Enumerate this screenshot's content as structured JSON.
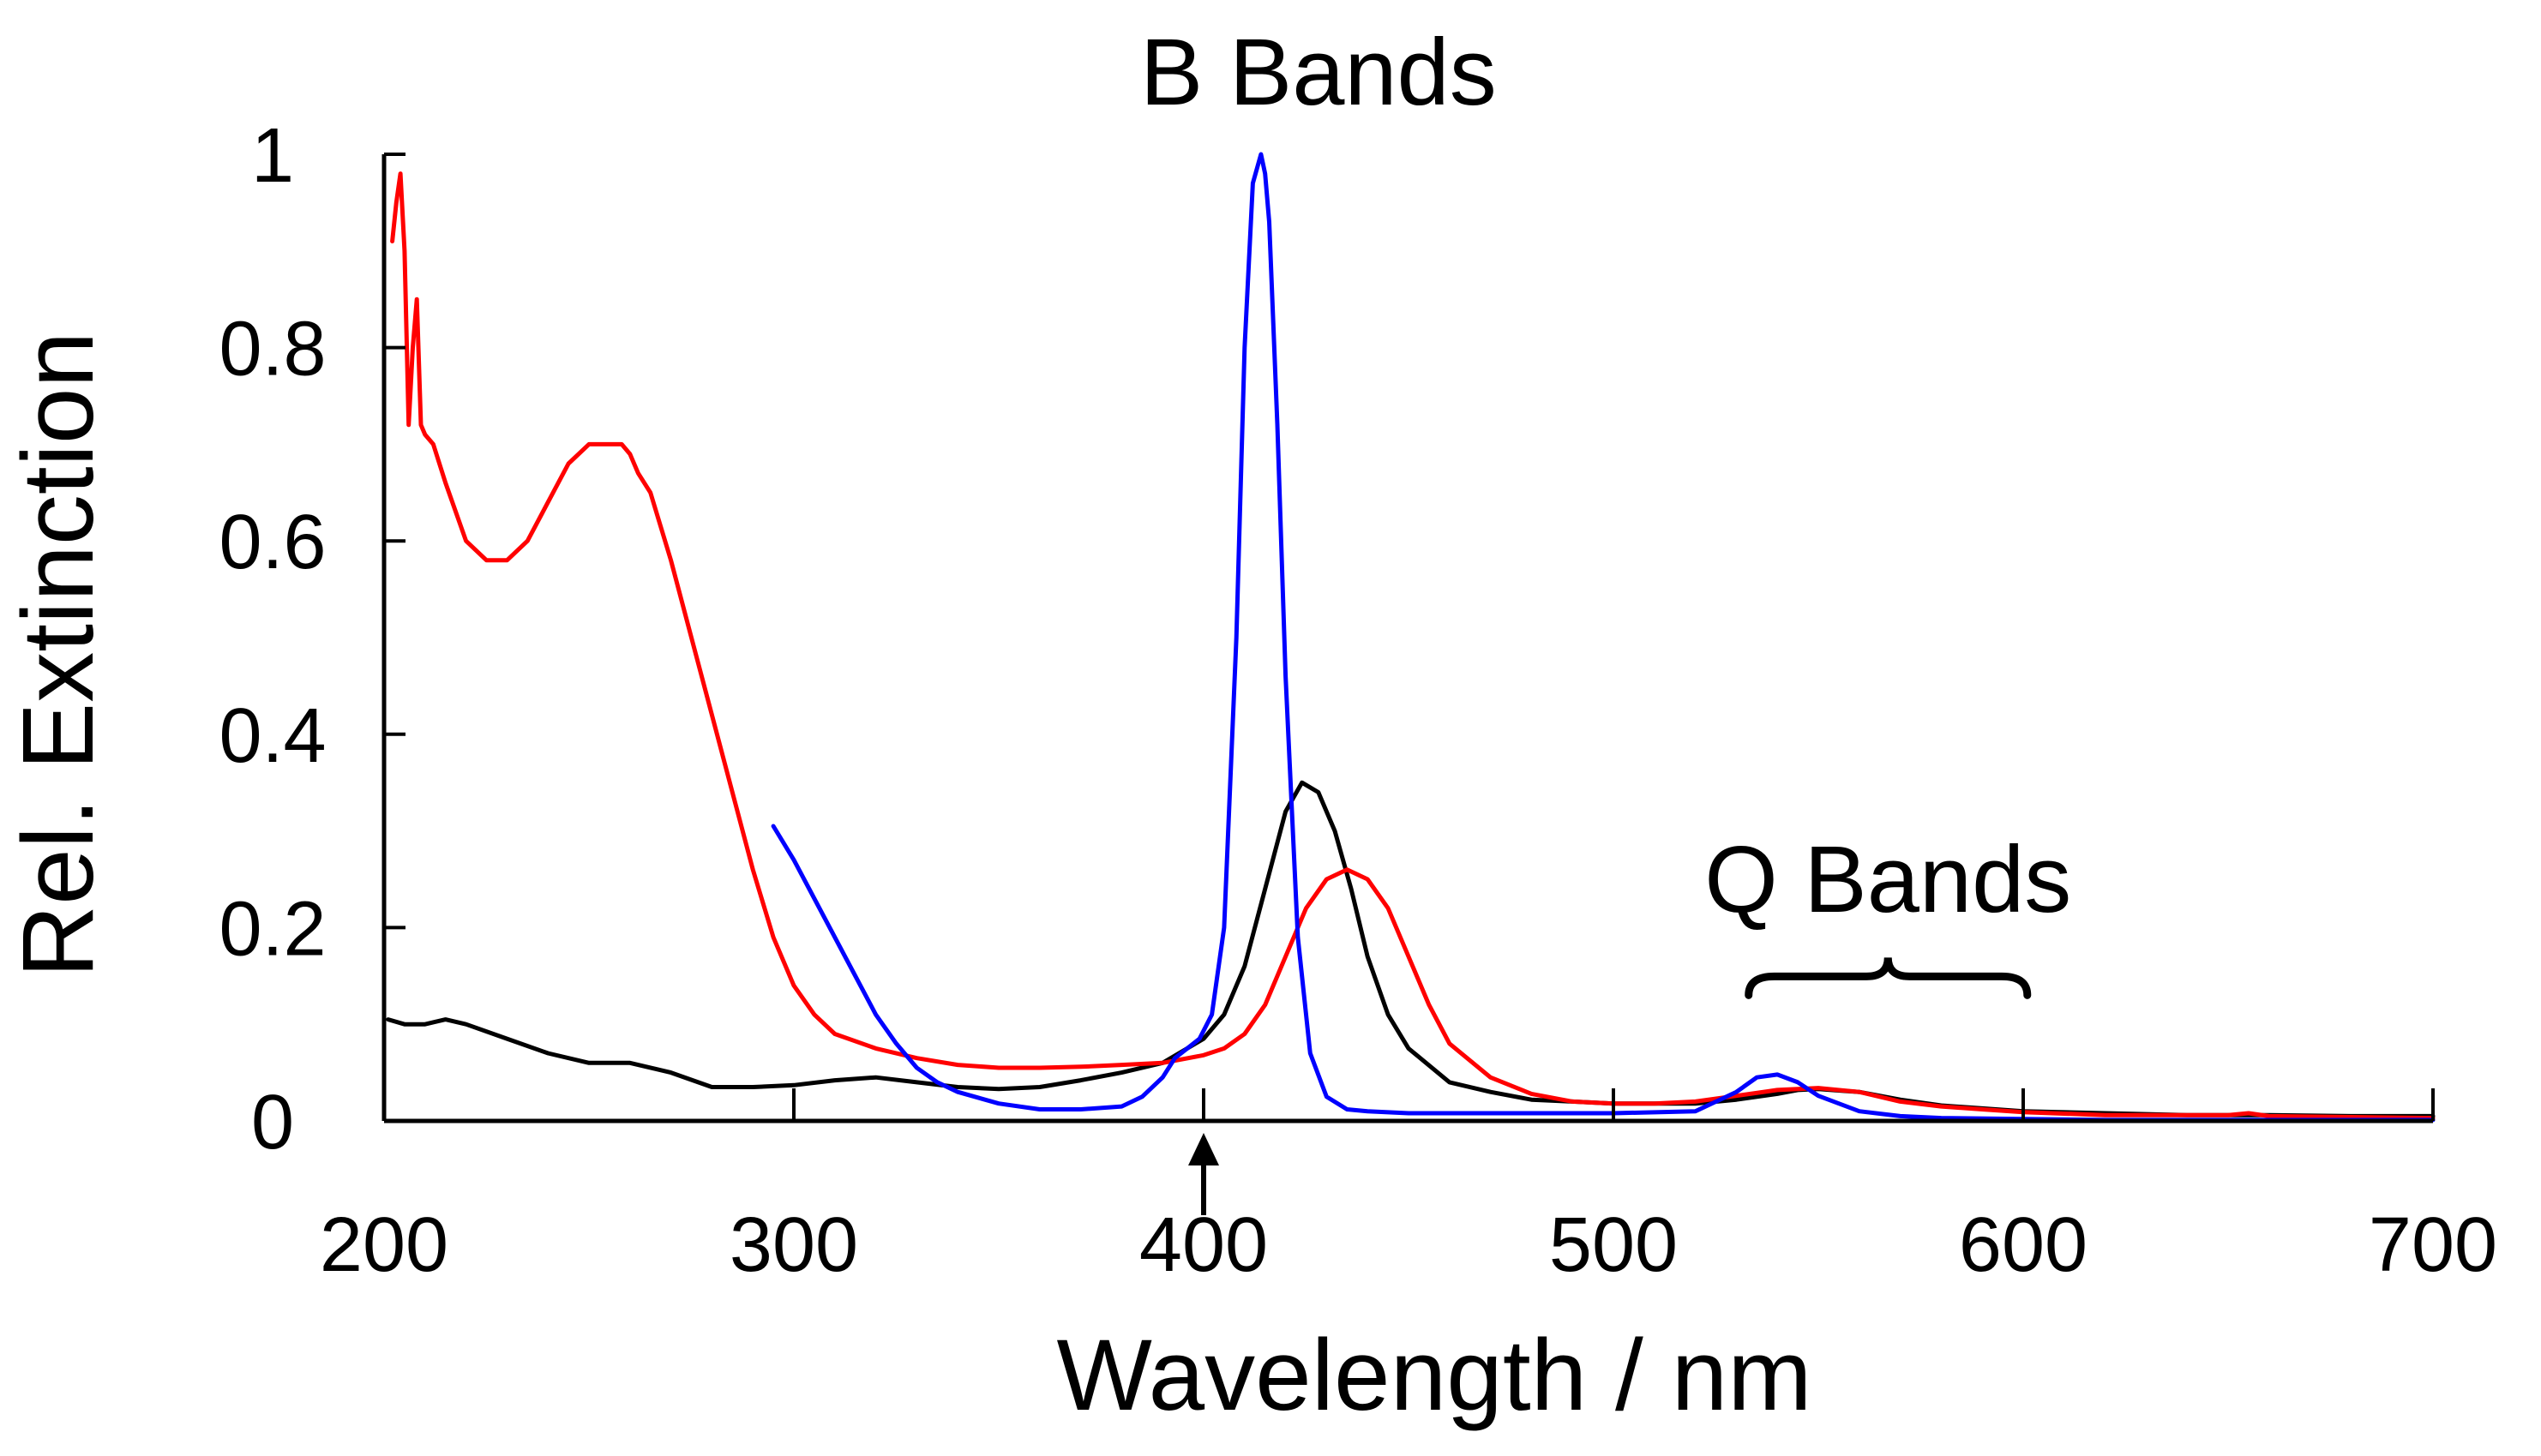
{
  "chart_data": {
    "type": "line",
    "title": "",
    "xlabel": "Wavelength / nm",
    "ylabel": "Rel. Extinction",
    "xlim": [
      200,
      700
    ],
    "ylim": [
      0,
      1
    ],
    "x_ticks": [
      200,
      300,
      400,
      500,
      600,
      700
    ],
    "y_ticks": [
      0,
      0.2,
      0.4,
      0.6,
      0.8,
      1
    ],
    "x_tick_labels": [
      "200",
      "300",
      "400",
      "500",
      "600",
      "700"
    ],
    "y_tick_labels": [
      "0",
      "0.2",
      "0.4",
      "0.6",
      "0.8",
      "1"
    ],
    "grid": false,
    "annotations": [
      {
        "text": "B Bands",
        "x": 428,
        "y": 1.06
      },
      {
        "text": "Q Bands",
        "x": 567,
        "y": 0.25,
        "bracket_x": [
          533,
          601
        ]
      }
    ],
    "arrow_marker": {
      "x": 400
    },
    "series": [
      {
        "color": "#000000",
        "x": [
          201,
          205,
          210,
          215,
          220,
          230,
          240,
          250,
          260,
          270,
          280,
          290,
          300,
          310,
          320,
          330,
          340,
          350,
          360,
          370,
          380,
          390,
          400,
          405,
          410,
          415,
          420,
          424,
          428,
          432,
          436,
          440,
          445,
          450,
          460,
          470,
          480,
          490,
          500,
          520,
          530,
          540,
          545,
          550,
          560,
          570,
          580,
          600,
          620,
          640,
          660,
          680,
          700
        ],
        "y": [
          0.105,
          0.1,
          0.1,
          0.105,
          0.1,
          0.085,
          0.07,
          0.06,
          0.06,
          0.05,
          0.035,
          0.035,
          0.037,
          0.042,
          0.045,
          0.04,
          0.035,
          0.033,
          0.035,
          0.042,
          0.05,
          0.06,
          0.085,
          0.11,
          0.16,
          0.24,
          0.32,
          0.35,
          0.34,
          0.3,
          0.24,
          0.17,
          0.11,
          0.075,
          0.04,
          0.03,
          0.022,
          0.02,
          0.018,
          0.018,
          0.022,
          0.028,
          0.032,
          0.033,
          0.03,
          0.022,
          0.016,
          0.01,
          0.008,
          0.006,
          0.006,
          0.005,
          0.005
        ]
      },
      {
        "color": "#ff0000",
        "x": [
          202,
          203,
          204,
          205,
          206,
          207,
          208,
          209,
          210,
          212,
          215,
          220,
          225,
          230,
          235,
          240,
          245,
          250,
          255,
          258,
          260,
          262,
          265,
          270,
          275,
          280,
          285,
          290,
          295,
          300,
          305,
          310,
          320,
          330,
          340,
          350,
          360,
          370,
          380,
          390,
          400,
          405,
          410,
          415,
          420,
          425,
          430,
          435,
          440,
          445,
          450,
          455,
          460,
          470,
          480,
          490,
          500,
          510,
          520,
          530,
          540,
          550,
          560,
          570,
          580,
          590,
          600,
          620,
          650,
          655,
          660,
          680,
          700
        ],
        "y": [
          0.91,
          0.95,
          0.98,
          0.9,
          0.72,
          0.8,
          0.85,
          0.72,
          0.71,
          0.7,
          0.66,
          0.6,
          0.58,
          0.58,
          0.6,
          0.64,
          0.68,
          0.7,
          0.7,
          0.7,
          0.69,
          0.67,
          0.65,
          0.58,
          0.5,
          0.42,
          0.34,
          0.26,
          0.19,
          0.14,
          0.11,
          0.09,
          0.075,
          0.065,
          0.058,
          0.055,
          0.055,
          0.056,
          0.058,
          0.06,
          0.068,
          0.075,
          0.09,
          0.12,
          0.17,
          0.22,
          0.25,
          0.26,
          0.25,
          0.22,
          0.17,
          0.12,
          0.08,
          0.045,
          0.028,
          0.02,
          0.018,
          0.018,
          0.02,
          0.026,
          0.032,
          0.034,
          0.03,
          0.02,
          0.015,
          0.012,
          0.009,
          0.006,
          0.006,
          0.008,
          0.005,
          0.004,
          0.003
        ]
      },
      {
        "color": "#0000ff",
        "x": [
          295,
          300,
          305,
          310,
          315,
          320,
          325,
          330,
          335,
          340,
          350,
          360,
          370,
          380,
          385,
          390,
          393,
          396,
          399,
          402,
          405,
          408,
          410,
          412,
          414,
          415,
          416,
          418,
          420,
          423,
          426,
          430,
          435,
          440,
          450,
          460,
          480,
          500,
          520,
          530,
          535,
          540,
          545,
          550,
          560,
          570,
          580,
          600,
          620,
          650,
          700
        ],
        "y": [
          0.305,
          0.27,
          0.23,
          0.19,
          0.15,
          0.11,
          0.08,
          0.055,
          0.04,
          0.03,
          0.018,
          0.012,
          0.012,
          0.015,
          0.025,
          0.045,
          0.065,
          0.075,
          0.085,
          0.11,
          0.2,
          0.5,
          0.8,
          0.97,
          1.0,
          0.98,
          0.93,
          0.72,
          0.46,
          0.19,
          0.07,
          0.025,
          0.012,
          0.01,
          0.008,
          0.008,
          0.008,
          0.008,
          0.01,
          0.03,
          0.045,
          0.048,
          0.04,
          0.026,
          0.01,
          0.005,
          0.003,
          0.002,
          0.001,
          0.001,
          0.001
        ]
      }
    ]
  }
}
